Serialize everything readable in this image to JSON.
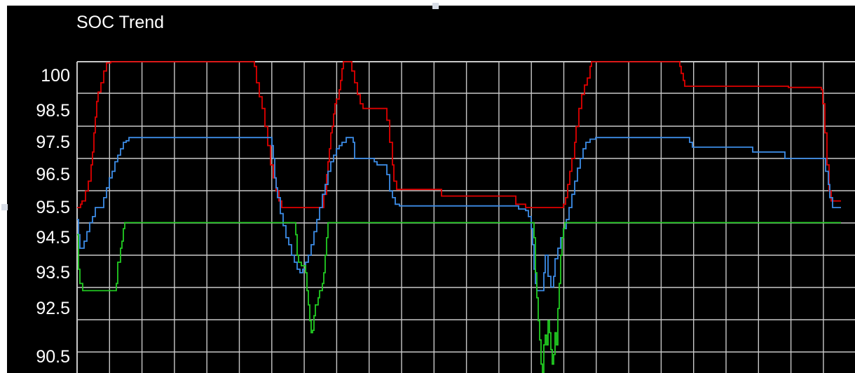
{
  "window": {
    "title": "SOC Trend",
    "colors": {
      "background": "#000000",
      "grid": "#c8c8c8",
      "text": "#ffffff"
    }
  },
  "chart_data": {
    "type": "line",
    "title": "SOC Trend",
    "xlabel": "",
    "ylabel": "",
    "grid": true,
    "legend": "none",
    "x_ticks_labeled": false,
    "y_tick_labels": [
      "100",
      "98.5",
      "97.5",
      "96.5",
      "95.5",
      "94.5",
      "93.5",
      "92.5",
      "90.5"
    ],
    "series": [
      {
        "color": "#e00000",
        "points": [
          [
            0,
            95.5
          ],
          [
            5,
            95.5
          ],
          [
            5,
            95.6
          ],
          [
            7,
            95.7
          ],
          [
            12,
            96.0
          ],
          [
            16,
            96.3
          ],
          [
            20,
            96.8
          ],
          [
            22,
            97.2
          ],
          [
            24,
            97.8
          ],
          [
            26,
            98.3
          ],
          [
            28,
            98.9
          ],
          [
            30,
            99.3
          ],
          [
            34,
            99.7
          ],
          [
            38,
            100.2
          ],
          [
            42,
            100.55
          ],
          [
            48,
            100.7
          ],
          [
            250,
            100.7
          ],
          [
            253,
            100.4
          ],
          [
            256,
            99.7
          ],
          [
            260,
            99.1
          ],
          [
            264,
            98.6
          ],
          [
            268,
            98.0
          ],
          [
            272,
            97.4
          ],
          [
            276,
            96.8
          ],
          [
            280,
            96.4
          ],
          [
            284,
            96.0
          ],
          [
            288,
            95.7
          ],
          [
            292,
            95.5
          ],
          [
            340,
            95.5
          ],
          [
            350,
            95.5
          ],
          [
            352,
            95.9
          ],
          [
            356,
            96.5
          ],
          [
            358,
            96.9
          ],
          [
            360,
            97.3
          ],
          [
            362,
            97.8
          ],
          [
            364,
            98.0
          ],
          [
            366,
            98.4
          ],
          [
            368,
            98.8
          ],
          [
            370,
            99.0
          ],
          [
            374,
            99.4
          ],
          [
            376,
            99.8
          ],
          [
            378,
            100.3
          ],
          [
            380,
            100.7
          ],
          [
            388,
            100.7
          ],
          [
            392,
            100.2
          ],
          [
            396,
            99.7
          ],
          [
            400,
            99.2
          ],
          [
            404,
            98.8
          ],
          [
            408,
            98.6
          ],
          [
            440,
            98.6
          ],
          [
            442,
            98.2
          ],
          [
            446,
            97.5
          ],
          [
            450,
            96.8
          ],
          [
            452,
            96.3
          ],
          [
            456,
            96.05
          ],
          [
            520,
            96.05
          ],
          [
            520,
            95.85
          ],
          [
            624,
            95.85
          ],
          [
            626,
            95.6
          ],
          [
            636,
            95.6
          ],
          [
            640,
            95.5
          ],
          [
            690,
            95.5
          ],
          [
            694,
            95.6
          ],
          [
            697,
            95.8
          ],
          [
            700,
            96.2
          ],
          [
            703,
            96.6
          ],
          [
            706,
            97.0
          ],
          [
            710,
            97.5
          ],
          [
            712,
            98.0
          ],
          [
            716,
            98.6
          ],
          [
            720,
            99.2
          ],
          [
            724,
            99.6
          ],
          [
            728,
            99.9
          ],
          [
            732,
            100.4
          ],
          [
            734,
            100.7
          ],
          [
            856,
            100.7
          ],
          [
            860,
            100.4
          ],
          [
            862,
            100.1
          ],
          [
            865,
            99.8
          ],
          [
            867,
            99.55
          ],
          [
            1010,
            99.55
          ],
          [
            1015,
            99.5
          ],
          [
            1060,
            99.5
          ],
          [
            1062,
            99.4
          ],
          [
            1064,
            98.8
          ],
          [
            1067,
            97.8
          ],
          [
            1070,
            96.8
          ],
          [
            1073,
            96.0
          ],
          [
            1076,
            95.7
          ],
          [
            1090,
            95.7
          ]
        ]
      },
      {
        "color": "#3c8ce6",
        "points": [
          [
            0,
            95.1
          ],
          [
            2,
            94.6
          ],
          [
            4,
            94.2
          ],
          [
            8,
            94.2
          ],
          [
            10,
            94.4
          ],
          [
            14,
            94.7
          ],
          [
            18,
            95.0
          ],
          [
            22,
            95.2
          ],
          [
            26,
            95.5
          ],
          [
            36,
            95.5
          ],
          [
            38,
            95.8
          ],
          [
            42,
            96.1
          ],
          [
            46,
            96.4
          ],
          [
            50,
            96.6
          ],
          [
            54,
            96.9
          ],
          [
            58,
            97.1
          ],
          [
            62,
            97.3
          ],
          [
            66,
            97.5
          ],
          [
            70,
            97.55
          ],
          [
            74,
            97.65
          ],
          [
            274,
            97.65
          ],
          [
            278,
            97.4
          ],
          [
            280,
            97.0
          ],
          [
            282,
            96.4
          ],
          [
            284,
            96.1
          ],
          [
            286,
            95.8
          ],
          [
            290,
            95.3
          ],
          [
            294,
            94.9
          ],
          [
            298,
            94.5
          ],
          [
            302,
            94.3
          ],
          [
            306,
            94.0
          ],
          [
            310,
            93.8
          ],
          [
            314,
            93.6
          ],
          [
            318,
            93.5
          ],
          [
            322,
            93.6
          ],
          [
            326,
            93.8
          ],
          [
            330,
            94.0
          ],
          [
            334,
            94.3
          ],
          [
            338,
            94.7
          ],
          [
            342,
            95.1
          ],
          [
            346,
            95.5
          ],
          [
            350,
            95.9
          ],
          [
            354,
            96.2
          ],
          [
            358,
            96.6
          ],
          [
            362,
            96.9
          ],
          [
            366,
            97.1
          ],
          [
            370,
            97.3
          ],
          [
            374,
            97.4
          ],
          [
            378,
            97.5
          ],
          [
            384,
            97.65
          ],
          [
            390,
            97.65
          ],
          [
            394,
            97.5
          ],
          [
            396,
            97.0
          ],
          [
            420,
            97.0
          ],
          [
            424,
            96.9
          ],
          [
            428,
            96.8
          ],
          [
            440,
            96.8
          ],
          [
            442,
            96.5
          ],
          [
            446,
            96.0
          ],
          [
            450,
            95.8
          ],
          [
            454,
            95.6
          ],
          [
            460,
            95.55
          ],
          [
            624,
            95.55
          ],
          [
            630,
            95.45
          ],
          [
            640,
            95.4
          ],
          [
            644,
            95.2
          ],
          [
            648,
            94.8
          ],
          [
            650,
            94.3
          ],
          [
            652,
            93.6
          ],
          [
            654,
            93.2
          ],
          [
            656,
            93.0
          ],
          [
            664,
            93.0
          ],
          [
            666,
            93.5
          ],
          [
            668,
            94.0
          ],
          [
            670,
            94.0
          ],
          [
            672,
            93.4
          ],
          [
            676,
            93.1
          ],
          [
            680,
            93.4
          ],
          [
            682,
            93.9
          ],
          [
            686,
            94.2
          ],
          [
            690,
            94.5
          ],
          [
            694,
            94.8
          ],
          [
            698,
            95.1
          ],
          [
            702,
            95.5
          ],
          [
            706,
            95.9
          ],
          [
            710,
            96.3
          ],
          [
            714,
            96.7
          ],
          [
            718,
            97.0
          ],
          [
            722,
            97.3
          ],
          [
            726,
            97.5
          ],
          [
            732,
            97.6
          ],
          [
            740,
            97.65
          ],
          [
            870,
            97.65
          ],
          [
            874,
            97.5
          ],
          [
            878,
            97.35
          ],
          [
            960,
            97.35
          ],
          [
            964,
            97.2
          ],
          [
            1006,
            97.2
          ],
          [
            1010,
            97.0
          ],
          [
            1066,
            97.0
          ],
          [
            1068,
            96.6
          ],
          [
            1072,
            96.2
          ],
          [
            1074,
            95.8
          ],
          [
            1078,
            95.5
          ],
          [
            1090,
            95.5
          ]
        ]
      },
      {
        "color": "#22cc22",
        "points": [
          [
            0,
            94.6
          ],
          [
            2,
            93.6
          ],
          [
            4,
            93.2
          ],
          [
            8,
            93.0
          ],
          [
            54,
            93.0
          ],
          [
            56,
            93.2
          ],
          [
            58,
            93.8
          ],
          [
            62,
            94.2
          ],
          [
            64,
            94.4
          ],
          [
            66,
            94.8
          ],
          [
            68,
            95.0
          ],
          [
            310,
            95.0
          ],
          [
            312,
            94.6
          ],
          [
            314,
            94.0
          ],
          [
            316,
            93.8
          ],
          [
            320,
            93.7
          ],
          [
            326,
            93.5
          ],
          [
            328,
            93.0
          ],
          [
            330,
            92.6
          ],
          [
            332,
            92.0
          ],
          [
            334,
            91.5
          ],
          [
            336,
            91.6
          ],
          [
            338,
            92.2
          ],
          [
            340,
            92.6
          ],
          [
            344,
            92.8
          ],
          [
            346,
            93.0
          ],
          [
            350,
            93.2
          ],
          [
            352,
            93.5
          ],
          [
            354,
            94.0
          ],
          [
            356,
            94.5
          ],
          [
            358,
            95.0
          ],
          [
            650,
            95.0
          ],
          [
            652,
            94.5
          ],
          [
            654,
            93.5
          ],
          [
            656,
            92.8
          ],
          [
            658,
            92.0
          ],
          [
            660,
            91.2
          ],
          [
            662,
            90.2
          ],
          [
            664,
            89.6
          ],
          [
            666,
            91.0
          ],
          [
            668,
            91.4
          ],
          [
            670,
            91.0
          ],
          [
            672,
            92.0
          ],
          [
            674,
            91.5
          ],
          [
            676,
            90.8
          ],
          [
            678,
            90.2
          ],
          [
            680,
            90.6
          ],
          [
            682,
            91.5
          ],
          [
            684,
            91.0
          ],
          [
            686,
            92.5
          ],
          [
            688,
            93.2
          ],
          [
            690,
            94.0
          ],
          [
            692,
            94.5
          ],
          [
            694,
            94.8
          ],
          [
            696,
            95.0
          ],
          [
            1090,
            95.0
          ]
        ]
      }
    ]
  }
}
